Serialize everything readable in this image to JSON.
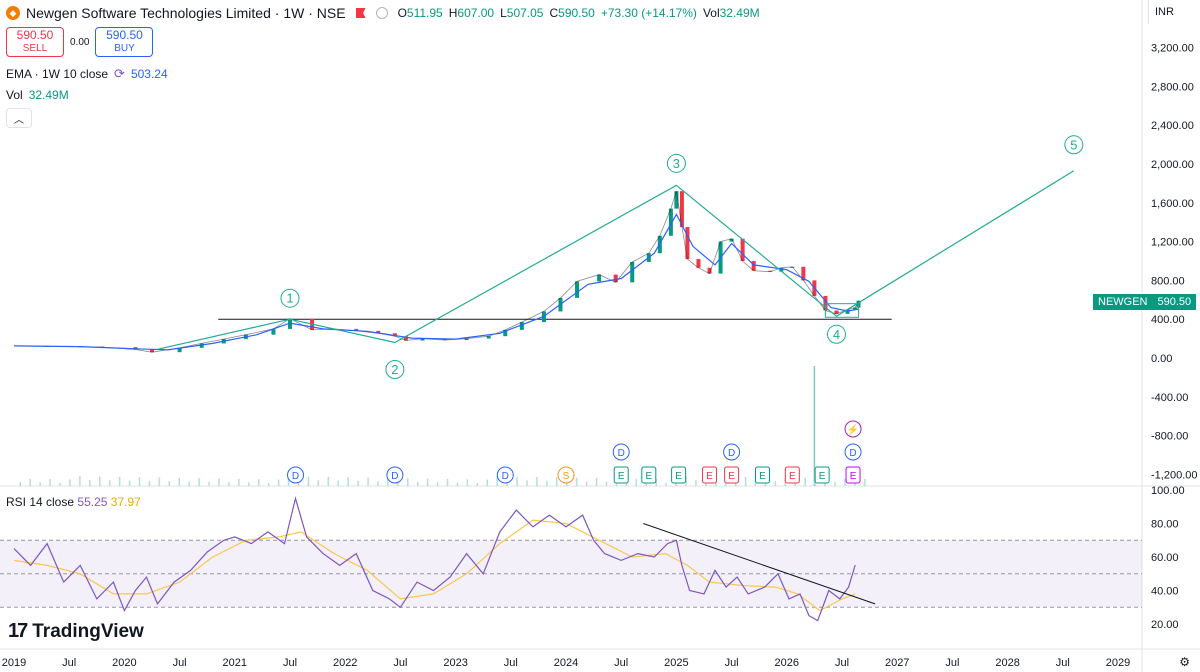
{
  "header": {
    "symbol_title": "Newgen Software Technologies Limited · 1W · NSE",
    "open_label": "O",
    "open": "511.95",
    "high_label": "H",
    "high": "607.00",
    "low_label": "L",
    "low": "507.05",
    "close_label": "C",
    "close": "590.50",
    "change": "+73.30 (+14.17%)",
    "vol_label": "Vol",
    "vol": "32.49M"
  },
  "trade": {
    "sell_price": "590.50",
    "sell_label": "SELL",
    "spread": "0.00",
    "buy_price": "590.50",
    "buy_label": "BUY"
  },
  "indicators": {
    "ema_label": "EMA · 1W 10 close",
    "ema_value": "503.24",
    "vol_label": "Vol",
    "vol_value": "32.49M",
    "rsi_label": "RSI 14 close",
    "rsi_value": "55.25",
    "rsi_ma": "37.97"
  },
  "currency": "INR",
  "price_tag": {
    "symbol": "NEWGEN",
    "value": "590.50"
  },
  "watermark": "TradingView",
  "colors": {
    "up": "#089981",
    "down": "#f23645",
    "ema": "#2962ff",
    "rsi": "#7e57c2",
    "rsi_ma": "#f9c74f",
    "wave": "#22ab94"
  },
  "chart_data": [
    {
      "type": "line",
      "name": "price",
      "y_axis_ticks": [
        "3,200.00",
        "2,800.00",
        "2,400.00",
        "2,000.00",
        "1,600.00",
        "1,200.00",
        "800.00",
        "400.00",
        "0.00",
        "-400.00",
        "-800.00",
        "-1,200.00"
      ],
      "x_axis_ticks": [
        "2019",
        "Jul",
        "2020",
        "Jul",
        "2021",
        "Jul",
        "2022",
        "Jul",
        "2023",
        "Jul",
        "2024",
        "Jul",
        "2025",
        "Jul",
        "2026",
        "Jul",
        "2027",
        "Jul",
        "2028",
        "Jul",
        "2029"
      ],
      "x_tick_years": [
        2019,
        2019.5,
        2020,
        2020.5,
        2021,
        2021.5,
        2022,
        2022.5,
        2023,
        2023.5,
        2024,
        2024.5,
        2025,
        2025.5,
        2026,
        2026.5,
        2027,
        2027.5,
        2028,
        2028.5,
        2029
      ],
      "ylim": [
        -1300,
        3500
      ],
      "close_series": [
        [
          2019.0,
          125
        ],
        [
          2019.3,
          120
        ],
        [
          2019.6,
          118
        ],
        [
          2019.8,
          112
        ],
        [
          2020.1,
          88
        ],
        [
          2020.25,
          60
        ],
        [
          2020.5,
          105
        ],
        [
          2020.7,
          150
        ],
        [
          2020.9,
          195
        ],
        [
          2021.1,
          240
        ],
        [
          2021.35,
          300
        ],
        [
          2021.5,
          405
        ],
        [
          2021.7,
          290
        ],
        [
          2021.9,
          300
        ],
        [
          2022.1,
          280
        ],
        [
          2022.3,
          255
        ],
        [
          2022.45,
          225
        ],
        [
          2022.55,
          180
        ],
        [
          2022.7,
          200
        ],
        [
          2022.9,
          185
        ],
        [
          2023.1,
          200
        ],
        [
          2023.3,
          225
        ],
        [
          2023.45,
          290
        ],
        [
          2023.6,
          370
        ],
        [
          2023.8,
          480
        ],
        [
          2023.95,
          620
        ],
        [
          2024.1,
          790
        ],
        [
          2024.3,
          860
        ],
        [
          2024.45,
          780
        ],
        [
          2024.6,
          990
        ],
        [
          2024.75,
          1080
        ],
        [
          2024.85,
          1260
        ],
        [
          2024.95,
          1540
        ],
        [
          2025.0,
          1720
        ],
        [
          2025.05,
          1350
        ],
        [
          2025.1,
          1020
        ],
        [
          2025.2,
          930
        ],
        [
          2025.3,
          870
        ],
        [
          2025.4,
          1200
        ],
        [
          2025.5,
          1230
        ],
        [
          2025.6,
          1000
        ],
        [
          2025.7,
          900
        ],
        [
          2025.85,
          890
        ],
        [
          2025.95,
          930
        ],
        [
          2026.05,
          940
        ],
        [
          2026.15,
          800
        ],
        [
          2026.25,
          640
        ],
        [
          2026.35,
          490
        ],
        [
          2026.45,
          455
        ],
        [
          2026.55,
          500
        ],
        [
          2026.62,
          520
        ],
        [
          2026.65,
          590.5
        ]
      ],
      "ema_series": [
        [
          2019.0,
          125
        ],
        [
          2019.6,
          118
        ],
        [
          2020.1,
          95
        ],
        [
          2020.4,
          85
        ],
        [
          2020.8,
          150
        ],
        [
          2021.2,
          240
        ],
        [
          2021.5,
          360
        ],
        [
          2021.8,
          300
        ],
        [
          2022.2,
          275
        ],
        [
          2022.6,
          205
        ],
        [
          2023.0,
          195
        ],
        [
          2023.4,
          255
        ],
        [
          2023.8,
          430
        ],
        [
          2024.2,
          760
        ],
        [
          2024.5,
          820
        ],
        [
          2024.8,
          1080
        ],
        [
          2025.0,
          1480
        ],
        [
          2025.15,
          1150
        ],
        [
          2025.35,
          960
        ],
        [
          2025.5,
          1180
        ],
        [
          2025.7,
          960
        ],
        [
          2026.0,
          910
        ],
        [
          2026.2,
          790
        ],
        [
          2026.4,
          520
        ],
        [
          2026.55,
          485
        ],
        [
          2026.65,
          503.24
        ]
      ],
      "volume_spike": {
        "x": 2026.25,
        "value": "1,600"
      },
      "horizontal_level": 400,
      "waves": [
        {
          "label": "1",
          "x": 2021.5,
          "y": 400
        },
        {
          "label": "2",
          "x": 2022.45,
          "y": 160
        },
        {
          "label": "3",
          "x": 2025.0,
          "y": 1780
        },
        {
          "label": "4",
          "x": 2026.45,
          "y": 430
        },
        {
          "label": "5",
          "x": 2028.6,
          "y": 1930
        }
      ],
      "wave_start": [
        2020.3,
        90
      ],
      "consolidation_box": {
        "x0": 2026.35,
        "x1": 2026.65,
        "y0": 420,
        "y1": 560
      },
      "events": [
        {
          "t": "D",
          "x": 2021.55,
          "kind": "dividend"
        },
        {
          "t": "D",
          "x": 2022.45,
          "kind": "dividend"
        },
        {
          "t": "D",
          "x": 2023.45,
          "kind": "dividend"
        },
        {
          "t": "S",
          "x": 2024.0,
          "kind": "split"
        },
        {
          "t": "D",
          "x": 2024.5,
          "kind": "dividend",
          "stack": 1
        },
        {
          "t": "E",
          "x": 2024.5,
          "kind": "earn-up"
        },
        {
          "t": "E",
          "x": 2024.75,
          "kind": "earn-up"
        },
        {
          "t": "E",
          "x": 2025.02,
          "kind": "earn-up"
        },
        {
          "t": "E",
          "x": 2025.3,
          "kind": "earn-down"
        },
        {
          "t": "D",
          "x": 2025.5,
          "kind": "dividend",
          "stack": 1
        },
        {
          "t": "E",
          "x": 2025.5,
          "kind": "earn-down"
        },
        {
          "t": "E",
          "x": 2025.78,
          "kind": "earn-up"
        },
        {
          "t": "E",
          "x": 2026.05,
          "kind": "earn-down"
        },
        {
          "t": "E",
          "x": 2026.32,
          "kind": "earn-up"
        },
        {
          "t": "D",
          "x": 2026.6,
          "kind": "dividend",
          "stack": 1
        },
        {
          "t": "E",
          "x": 2026.6,
          "kind": "earn-future"
        }
      ]
    },
    {
      "type": "line",
      "name": "RSI 14",
      "y_axis_ticks": [
        "100.00",
        "80.00",
        "60.00",
        "40.00",
        "20.00"
      ],
      "ylim": [
        15,
        100
      ],
      "bands": [
        70,
        50,
        30
      ],
      "rsi_series": [
        [
          2019.0,
          65
        ],
        [
          2019.15,
          55
        ],
        [
          2019.3,
          68
        ],
        [
          2019.45,
          45
        ],
        [
          2019.6,
          55
        ],
        [
          2019.75,
          35
        ],
        [
          2019.9,
          45
        ],
        [
          2020.0,
          28
        ],
        [
          2020.1,
          40
        ],
        [
          2020.2,
          48
        ],
        [
          2020.3,
          32
        ],
        [
          2020.45,
          45
        ],
        [
          2020.6,
          52
        ],
        [
          2020.75,
          63
        ],
        [
          2020.9,
          70
        ],
        [
          2021.0,
          72
        ],
        [
          2021.15,
          68
        ],
        [
          2021.3,
          75
        ],
        [
          2021.45,
          68
        ],
        [
          2021.55,
          95
        ],
        [
          2021.65,
          72
        ],
        [
          2021.8,
          62
        ],
        [
          2021.95,
          55
        ],
        [
          2022.1,
          62
        ],
        [
          2022.25,
          40
        ],
        [
          2022.4,
          35
        ],
        [
          2022.5,
          30
        ],
        [
          2022.65,
          45
        ],
        [
          2022.8,
          40
        ],
        [
          2022.95,
          48
        ],
        [
          2023.1,
          62
        ],
        [
          2023.25,
          50
        ],
        [
          2023.4,
          75
        ],
        [
          2023.55,
          88
        ],
        [
          2023.7,
          78
        ],
        [
          2023.85,
          85
        ],
        [
          2024.0,
          78
        ],
        [
          2024.15,
          85
        ],
        [
          2024.25,
          70
        ],
        [
          2024.35,
          62
        ],
        [
          2024.5,
          58
        ],
        [
          2024.65,
          62
        ],
        [
          2024.8,
          60
        ],
        [
          2024.92,
          68
        ],
        [
          2025.0,
          70
        ],
        [
          2025.05,
          55
        ],
        [
          2025.12,
          40
        ],
        [
          2025.25,
          38
        ],
        [
          2025.35,
          52
        ],
        [
          2025.45,
          42
        ],
        [
          2025.55,
          48
        ],
        [
          2025.65,
          38
        ],
        [
          2025.8,
          42
        ],
        [
          2025.92,
          50
        ],
        [
          2026.02,
          35
        ],
        [
          2026.12,
          38
        ],
        [
          2026.2,
          25
        ],
        [
          2026.28,
          22
        ],
        [
          2026.38,
          40
        ],
        [
          2026.48,
          35
        ],
        [
          2026.56,
          42
        ],
        [
          2026.62,
          55.25
        ]
      ],
      "rsi_ma_series": [
        [
          2019.0,
          58
        ],
        [
          2019.3,
          55
        ],
        [
          2019.6,
          50
        ],
        [
          2019.9,
          38
        ],
        [
          2020.2,
          38
        ],
        [
          2020.5,
          45
        ],
        [
          2020.8,
          60
        ],
        [
          2021.1,
          70
        ],
        [
          2021.4,
          72
        ],
        [
          2021.6,
          75
        ],
        [
          2021.9,
          62
        ],
        [
          2022.2,
          52
        ],
        [
          2022.5,
          35
        ],
        [
          2022.8,
          38
        ],
        [
          2023.1,
          50
        ],
        [
          2023.4,
          68
        ],
        [
          2023.7,
          82
        ],
        [
          2024.0,
          80
        ],
        [
          2024.3,
          70
        ],
        [
          2024.6,
          60
        ],
        [
          2024.9,
          62
        ],
        [
          2025.1,
          55
        ],
        [
          2025.3,
          45
        ],
        [
          2025.6,
          43
        ],
        [
          2025.9,
          42
        ],
        [
          2026.1,
          38
        ],
        [
          2026.3,
          28
        ],
        [
          2026.5,
          35
        ],
        [
          2026.62,
          37.97
        ]
      ],
      "trendline": [
        [
          2024.7,
          80
        ],
        [
          2026.8,
          32
        ]
      ]
    }
  ]
}
